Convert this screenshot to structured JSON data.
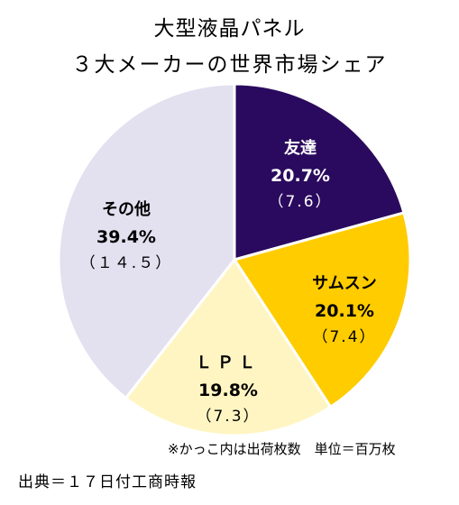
{
  "title": "大型液晶パネル",
  "subtitle": "３大メーカーの世界市場シェア",
  "note": "※かっこ内は出荷枚数　単位＝百万枚",
  "source": "出典＝１７日付工商時報",
  "chart_data": {
    "type": "pie",
    "title": "大型液晶パネル ３大メーカーの世界市場シェア",
    "slices": [
      {
        "label": "友達",
        "percent_label": "20.7%",
        "value": 20.7,
        "count_label": "（7.6）",
        "count": 7.6,
        "color": "#2a0a5e",
        "text_color": "#ffffff"
      },
      {
        "label": "サムスン",
        "percent_label": "20.1%",
        "value": 20.1,
        "count_label": "（7.4）",
        "count": 7.4,
        "color": "#ffcc00",
        "text_color": "#000000"
      },
      {
        "label": "ＬＰＬ",
        "percent_label": "19.8%",
        "value": 19.8,
        "count_label": "（7.3）",
        "count": 7.3,
        "color": "#fff5c2",
        "text_color": "#000000"
      },
      {
        "label": "その他",
        "percent_label": "39.4%",
        "value": 39.4,
        "count_label": "（１４.５）",
        "count": 14.5,
        "color": "#e3e0ef",
        "text_color": "#000000"
      }
    ]
  }
}
